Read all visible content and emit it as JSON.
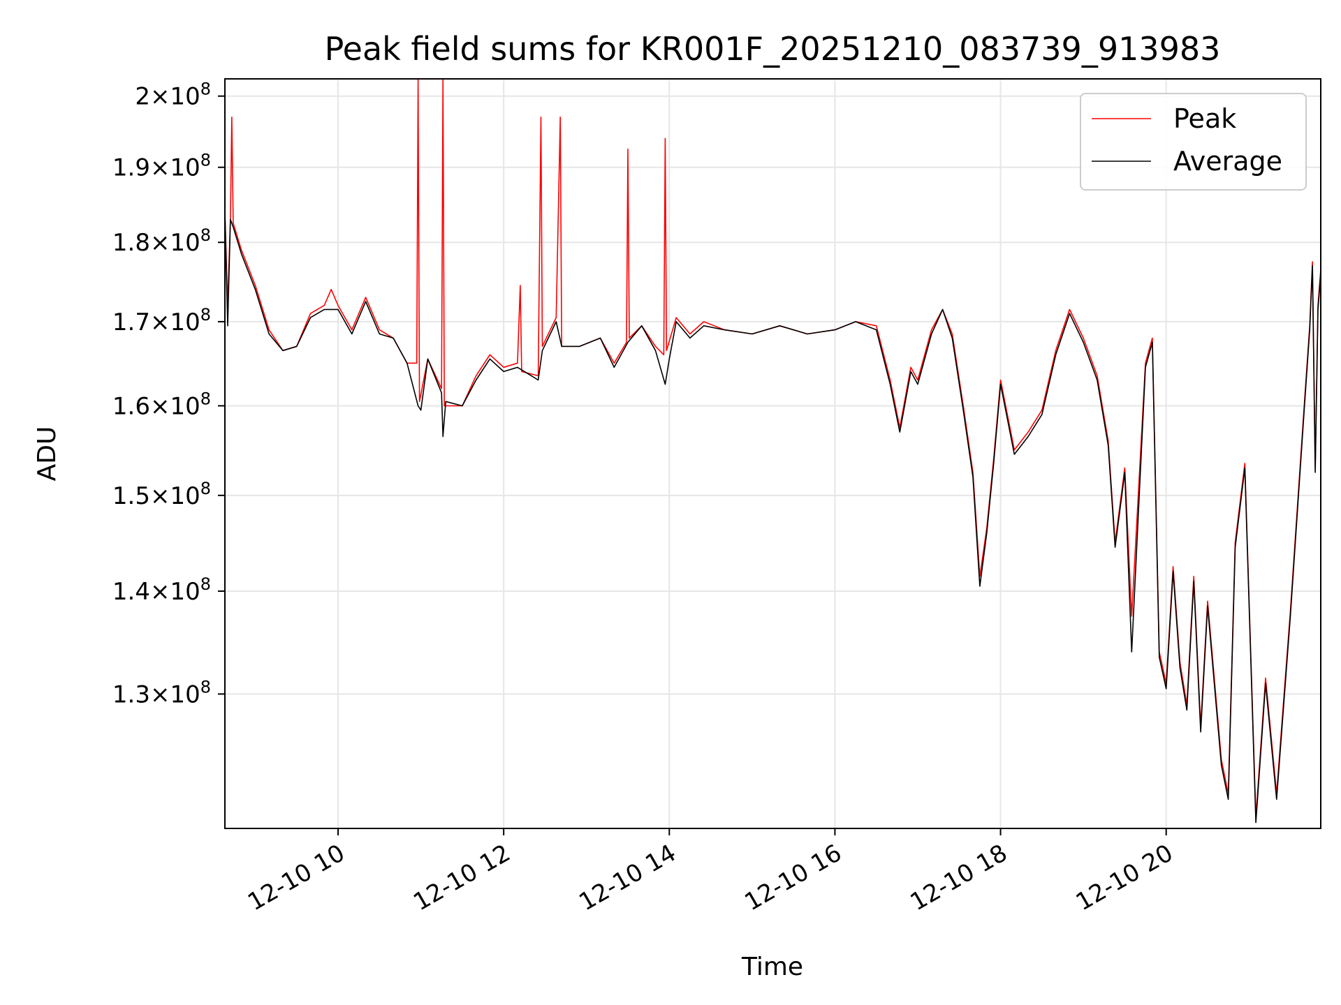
{
  "chart_data": {
    "type": "line",
    "title": "Peak field sums for KR001F_20251210_083739_913983",
    "xlabel": "Time",
    "ylabel": "ADU",
    "y_scale": "log",
    "ylim": [
      118000000,
      202500000
    ],
    "xlim": [
      "2025-12-10T08:38:00",
      "2025-12-10T21:52:00"
    ],
    "grid": true,
    "legend_position": "top-right",
    "x_ticks": [
      {
        "value": "2025-12-10T10:00:00",
        "label": "12-10 10"
      },
      {
        "value": "2025-12-10T12:00:00",
        "label": "12-10 12"
      },
      {
        "value": "2025-12-10T14:00:00",
        "label": "12-10 14"
      },
      {
        "value": "2025-12-10T16:00:00",
        "label": "12-10 16"
      },
      {
        "value": "2025-12-10T18:00:00",
        "label": "12-10 18"
      },
      {
        "value": "2025-12-10T20:00:00",
        "label": "12-10 20"
      }
    ],
    "y_ticks": [
      {
        "value": 130000000,
        "mantissa": "1.3",
        "exponent": "8"
      },
      {
        "value": 140000000,
        "mantissa": "1.4",
        "exponent": "8"
      },
      {
        "value": 150000000,
        "mantissa": "1.5",
        "exponent": "8"
      },
      {
        "value": 160000000,
        "mantissa": "1.6",
        "exponent": "8"
      },
      {
        "value": 170000000,
        "mantissa": "1.7",
        "exponent": "8"
      },
      {
        "value": 180000000,
        "mantissa": "1.8",
        "exponent": "8"
      },
      {
        "value": 190000000,
        "mantissa": "1.9",
        "exponent": "8"
      },
      {
        "value": 200000000,
        "mantissa": "2",
        "exponent": "8"
      }
    ],
    "series": [
      {
        "name": "Peak",
        "color": "#ff0000",
        "points": [
          [
            "2025-12-10T08:38:00",
            184000000
          ],
          [
            "2025-12-10T08:40:00",
            172000000
          ],
          [
            "2025-12-10T08:42:00",
            183000000
          ],
          [
            "2025-12-10T08:43:00",
            197000000
          ],
          [
            "2025-12-10T08:44:00",
            182500000
          ],
          [
            "2025-12-10T08:50:00",
            179000000
          ],
          [
            "2025-12-10T09:00:00",
            174500000
          ],
          [
            "2025-12-10T09:10:00",
            169000000
          ],
          [
            "2025-12-10T09:20:00",
            166500000
          ],
          [
            "2025-12-10T09:30:00",
            167000000
          ],
          [
            "2025-12-10T09:40:00",
            171000000
          ],
          [
            "2025-12-10T09:50:00",
            172000000
          ],
          [
            "2025-12-10T09:55:00",
            174000000
          ],
          [
            "2025-12-10T10:00:00",
            172000000
          ],
          [
            "2025-12-10T10:10:00",
            169000000
          ],
          [
            "2025-12-10T10:20:00",
            173000000
          ],
          [
            "2025-12-10T10:30:00",
            169000000
          ],
          [
            "2025-12-10T10:40:00",
            168000000
          ],
          [
            "2025-12-10T10:50:00",
            165000000
          ],
          [
            "2025-12-10T10:57:00",
            165000000
          ],
          [
            "2025-12-10T10:58:00",
            202500000
          ],
          [
            "2025-12-10T10:59:00",
            160500000
          ],
          [
            "2025-12-10T11:05:00",
            165500000
          ],
          [
            "2025-12-10T11:15:00",
            162000000
          ],
          [
            "2025-12-10T11:16:00",
            202500000
          ],
          [
            "2025-12-10T11:17:00",
            160000000
          ],
          [
            "2025-12-10T11:30:00",
            160000000
          ],
          [
            "2025-12-10T11:40:00",
            163500000
          ],
          [
            "2025-12-10T11:50:00",
            166000000
          ],
          [
            "2025-12-10T12:00:00",
            164500000
          ],
          [
            "2025-12-10T12:10:00",
            165000000
          ],
          [
            "2025-12-10T12:12:00",
            174500000
          ],
          [
            "2025-12-10T12:13:00",
            164000000
          ],
          [
            "2025-12-10T12:25:00",
            163500000
          ],
          [
            "2025-12-10T12:27:00",
            197000000
          ],
          [
            "2025-12-10T12:28:00",
            167000000
          ],
          [
            "2025-12-10T12:38:00",
            170500000
          ],
          [
            "2025-12-10T12:41:00",
            197000000
          ],
          [
            "2025-12-10T12:42:00",
            167000000
          ],
          [
            "2025-12-10T12:55:00",
            167000000
          ],
          [
            "2025-12-10T13:10:00",
            168000000
          ],
          [
            "2025-12-10T13:20:00",
            165000000
          ],
          [
            "2025-12-10T13:29:00",
            167500000
          ],
          [
            "2025-12-10T13:30:00",
            192500000
          ],
          [
            "2025-12-10T13:31:00",
            168000000
          ],
          [
            "2025-12-10T13:40:00",
            169500000
          ],
          [
            "2025-12-10T13:50:00",
            167000000
          ],
          [
            "2025-12-10T13:56:00",
            166000000
          ],
          [
            "2025-12-10T13:57:00",
            194000000
          ],
          [
            "2025-12-10T13:58:00",
            166500000
          ],
          [
            "2025-12-10T14:05:00",
            170500000
          ],
          [
            "2025-12-10T14:15:00",
            168500000
          ],
          [
            "2025-12-10T14:25:00",
            170000000
          ],
          [
            "2025-12-10T14:40:00",
            169000000
          ],
          [
            "2025-12-10T15:00:00",
            168500000
          ],
          [
            "2025-12-10T15:20:00",
            169500000
          ],
          [
            "2025-12-10T15:40:00",
            168500000
          ],
          [
            "2025-12-10T16:00:00",
            169000000
          ],
          [
            "2025-12-10T16:15:00",
            170000000
          ],
          [
            "2025-12-10T16:30:00",
            169500000
          ],
          [
            "2025-12-10T16:40:00",
            163000000
          ],
          [
            "2025-12-10T16:47:00",
            157500000
          ],
          [
            "2025-12-10T16:55:00",
            164500000
          ],
          [
            "2025-12-10T17:00:00",
            163000000
          ],
          [
            "2025-12-10T17:10:00",
            169000000
          ],
          [
            "2025-12-10T17:18:00",
            171500000
          ],
          [
            "2025-12-10T17:25:00",
            168500000
          ],
          [
            "2025-12-10T17:33:00",
            160000000
          ],
          [
            "2025-12-10T17:40:00",
            152500000
          ],
          [
            "2025-12-10T17:45:00",
            141500000
          ],
          [
            "2025-12-10T17:50:00",
            146500000
          ],
          [
            "2025-12-10T17:55:00",
            154000000
          ],
          [
            "2025-12-10T18:00:00",
            163000000
          ],
          [
            "2025-12-10T18:10:00",
            155000000
          ],
          [
            "2025-12-10T18:20:00",
            157000000
          ],
          [
            "2025-12-10T18:30:00",
            159500000
          ],
          [
            "2025-12-10T18:40:00",
            166500000
          ],
          [
            "2025-12-10T18:50:00",
            171500000
          ],
          [
            "2025-12-10T19:00:00",
            168000000
          ],
          [
            "2025-12-10T19:10:00",
            163500000
          ],
          [
            "2025-12-10T19:18:00",
            156000000
          ],
          [
            "2025-12-10T19:23:00",
            145000000
          ],
          [
            "2025-12-10T19:30:00",
            153000000
          ],
          [
            "2025-12-10T19:35:00",
            137500000
          ],
          [
            "2025-12-10T19:45:00",
            165000000
          ],
          [
            "2025-12-10T19:50:00",
            168000000
          ],
          [
            "2025-12-10T19:55:00",
            134000000
          ],
          [
            "2025-12-10T20:00:00",
            131000000
          ],
          [
            "2025-12-10T20:05:00",
            142500000
          ],
          [
            "2025-12-10T20:10:00",
            133000000
          ],
          [
            "2025-12-10T20:15:00",
            129000000
          ],
          [
            "2025-12-10T20:20:00",
            141500000
          ],
          [
            "2025-12-10T20:25:00",
            127000000
          ],
          [
            "2025-12-10T20:30:00",
            139000000
          ],
          [
            "2025-12-10T20:40:00",
            124000000
          ],
          [
            "2025-12-10T20:45:00",
            121000000
          ],
          [
            "2025-12-10T20:50:00",
            145000000
          ],
          [
            "2025-12-10T20:57:00",
            153500000
          ],
          [
            "2025-12-10T21:05:00",
            119000000
          ],
          [
            "2025-12-10T21:12:00",
            131500000
          ],
          [
            "2025-12-10T21:20:00",
            121000000
          ],
          [
            "2025-12-10T21:30:00",
            138000000
          ],
          [
            "2025-12-10T21:40:00",
            160000000
          ],
          [
            "2025-12-10T21:44:00",
            169500000
          ],
          [
            "2025-12-10T21:46:00",
            177500000
          ],
          [
            "2025-12-10T21:48:00",
            153000000
          ],
          [
            "2025-12-10T21:50:00",
            172000000
          ],
          [
            "2025-12-10T21:52:00",
            176500000
          ]
        ]
      },
      {
        "name": "Average",
        "color": "#000000",
        "points": [
          [
            "2025-12-10T08:38:00",
            184000000
          ],
          [
            "2025-12-10T08:40:00",
            169500000
          ],
          [
            "2025-12-10T08:42:00",
            183000000
          ],
          [
            "2025-12-10T08:44:00",
            182000000
          ],
          [
            "2025-12-10T08:50:00",
            178500000
          ],
          [
            "2025-12-10T09:00:00",
            174000000
          ],
          [
            "2025-12-10T09:10:00",
            168500000
          ],
          [
            "2025-12-10T09:20:00",
            166500000
          ],
          [
            "2025-12-10T09:30:00",
            167000000
          ],
          [
            "2025-12-10T09:40:00",
            170500000
          ],
          [
            "2025-12-10T09:50:00",
            171500000
          ],
          [
            "2025-12-10T10:00:00",
            171500000
          ],
          [
            "2025-12-10T10:10:00",
            168500000
          ],
          [
            "2025-12-10T10:20:00",
            172500000
          ],
          [
            "2025-12-10T10:30:00",
            168500000
          ],
          [
            "2025-12-10T10:40:00",
            168000000
          ],
          [
            "2025-12-10T10:50:00",
            165000000
          ],
          [
            "2025-12-10T10:58:00",
            160000000
          ],
          [
            "2025-12-10T11:00:00",
            159500000
          ],
          [
            "2025-12-10T11:05:00",
            165500000
          ],
          [
            "2025-12-10T11:15:00",
            161500000
          ],
          [
            "2025-12-10T11:16:00",
            156500000
          ],
          [
            "2025-12-10T11:18:00",
            160500000
          ],
          [
            "2025-12-10T11:30:00",
            160000000
          ],
          [
            "2025-12-10T11:40:00",
            163000000
          ],
          [
            "2025-12-10T11:50:00",
            165500000
          ],
          [
            "2025-12-10T12:00:00",
            164000000
          ],
          [
            "2025-12-10T12:10:00",
            164500000
          ],
          [
            "2025-12-10T12:25:00",
            163000000
          ],
          [
            "2025-12-10T12:28:00",
            166500000
          ],
          [
            "2025-12-10T12:38:00",
            170000000
          ],
          [
            "2025-12-10T12:42:00",
            167000000
          ],
          [
            "2025-12-10T12:55:00",
            167000000
          ],
          [
            "2025-12-10T13:10:00",
            168000000
          ],
          [
            "2025-12-10T13:20:00",
            164500000
          ],
          [
            "2025-12-10T13:30:00",
            167500000
          ],
          [
            "2025-12-10T13:40:00",
            169500000
          ],
          [
            "2025-12-10T13:50:00",
            166500000
          ],
          [
            "2025-12-10T13:57:00",
            162500000
          ],
          [
            "2025-12-10T14:00:00",
            165500000
          ],
          [
            "2025-12-10T14:05:00",
            170000000
          ],
          [
            "2025-12-10T14:15:00",
            168000000
          ],
          [
            "2025-12-10T14:25:00",
            169500000
          ],
          [
            "2025-12-10T14:40:00",
            169000000
          ],
          [
            "2025-12-10T15:00:00",
            168500000
          ],
          [
            "2025-12-10T15:20:00",
            169500000
          ],
          [
            "2025-12-10T15:40:00",
            168500000
          ],
          [
            "2025-12-10T16:00:00",
            169000000
          ],
          [
            "2025-12-10T16:15:00",
            170000000
          ],
          [
            "2025-12-10T16:30:00",
            169000000
          ],
          [
            "2025-12-10T16:40:00",
            162500000
          ],
          [
            "2025-12-10T16:47:00",
            157000000
          ],
          [
            "2025-12-10T16:55:00",
            164000000
          ],
          [
            "2025-12-10T17:00:00",
            162500000
          ],
          [
            "2025-12-10T17:10:00",
            168500000
          ],
          [
            "2025-12-10T17:18:00",
            171500000
          ],
          [
            "2025-12-10T17:25:00",
            168000000
          ],
          [
            "2025-12-10T17:33:00",
            159500000
          ],
          [
            "2025-12-10T17:40:00",
            152000000
          ],
          [
            "2025-12-10T17:45:00",
            140500000
          ],
          [
            "2025-12-10T17:50:00",
            146000000
          ],
          [
            "2025-12-10T17:55:00",
            153500000
          ],
          [
            "2025-12-10T18:00:00",
            162500000
          ],
          [
            "2025-12-10T18:10:00",
            154500000
          ],
          [
            "2025-12-10T18:20:00",
            156500000
          ],
          [
            "2025-12-10T18:30:00",
            159000000
          ],
          [
            "2025-12-10T18:40:00",
            166000000
          ],
          [
            "2025-12-10T18:50:00",
            171000000
          ],
          [
            "2025-12-10T19:00:00",
            167500000
          ],
          [
            "2025-12-10T19:10:00",
            163000000
          ],
          [
            "2025-12-10T19:18:00",
            155500000
          ],
          [
            "2025-12-10T19:23:00",
            144500000
          ],
          [
            "2025-12-10T19:30:00",
            152500000
          ],
          [
            "2025-12-10T19:35:00",
            134000000
          ],
          [
            "2025-12-10T19:45:00",
            164500000
          ],
          [
            "2025-12-10T19:50:00",
            167500000
          ],
          [
            "2025-12-10T19:55:00",
            133500000
          ],
          [
            "2025-12-10T20:00:00",
            130500000
          ],
          [
            "2025-12-10T20:05:00",
            142000000
          ],
          [
            "2025-12-10T20:10:00",
            132500000
          ],
          [
            "2025-12-10T20:15:00",
            128500000
          ],
          [
            "2025-12-10T20:20:00",
            141000000
          ],
          [
            "2025-12-10T20:25:00",
            126500000
          ],
          [
            "2025-12-10T20:30:00",
            138500000
          ],
          [
            "2025-12-10T20:40:00",
            123500000
          ],
          [
            "2025-12-10T20:45:00",
            120500000
          ],
          [
            "2025-12-10T20:50:00",
            144500000
          ],
          [
            "2025-12-10T20:57:00",
            153000000
          ],
          [
            "2025-12-10T21:05:00",
            118500000
          ],
          [
            "2025-12-10T21:12:00",
            131000000
          ],
          [
            "2025-12-10T21:20:00",
            120500000
          ],
          [
            "2025-12-10T21:30:00",
            137500000
          ],
          [
            "2025-12-10T21:40:00",
            159500000
          ],
          [
            "2025-12-10T21:44:00",
            169000000
          ],
          [
            "2025-12-10T21:46:00",
            177000000
          ],
          [
            "2025-12-10T21:48:00",
            152500000
          ],
          [
            "2025-12-10T21:50:00",
            171500000
          ],
          [
            "2025-12-10T21:52:00",
            176000000
          ]
        ]
      }
    ]
  }
}
